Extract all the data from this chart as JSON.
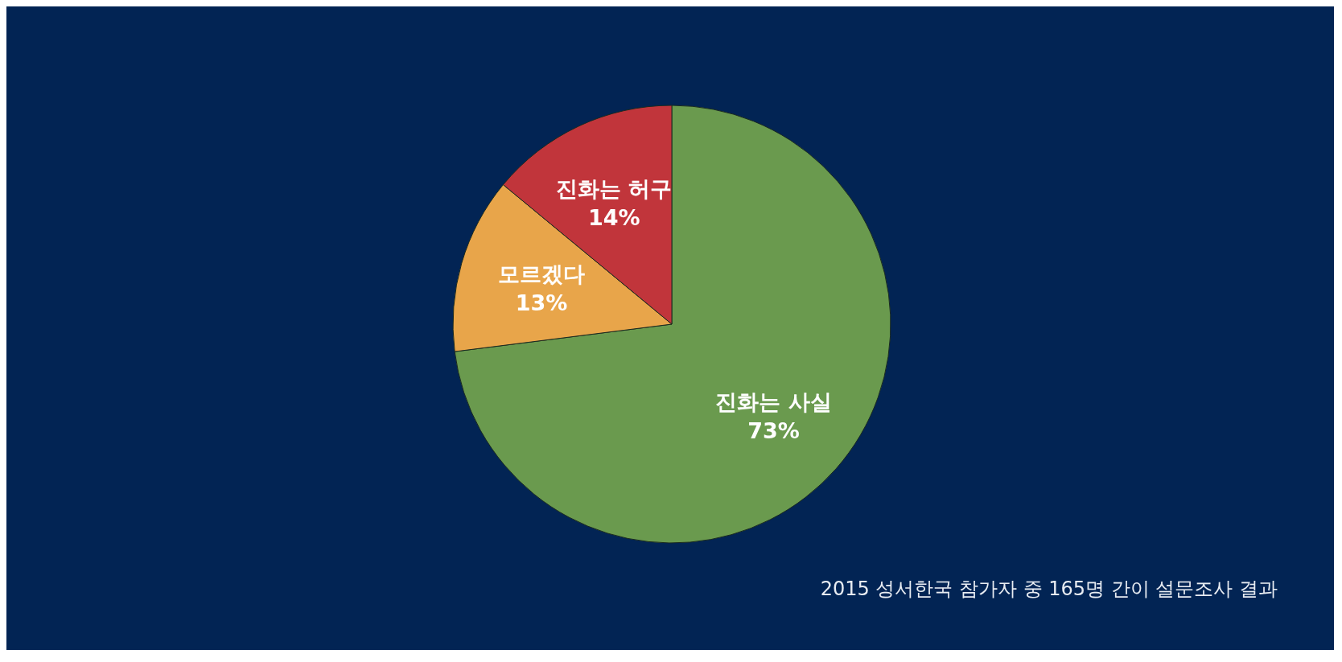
{
  "chart_data": {
    "type": "pie",
    "categories": [
      "진화는 사실",
      "모르겠다",
      "진화는 허구"
    ],
    "values": [
      73,
      13,
      14
    ],
    "value_labels": [
      "73%",
      "13%",
      "14%"
    ],
    "colors": [
      "#6a9a4e",
      "#e8a54a",
      "#c1353b"
    ],
    "annotations": [
      "2015 성서한국 참가자 중 165명 간이 설문조사 결과"
    ]
  }
}
